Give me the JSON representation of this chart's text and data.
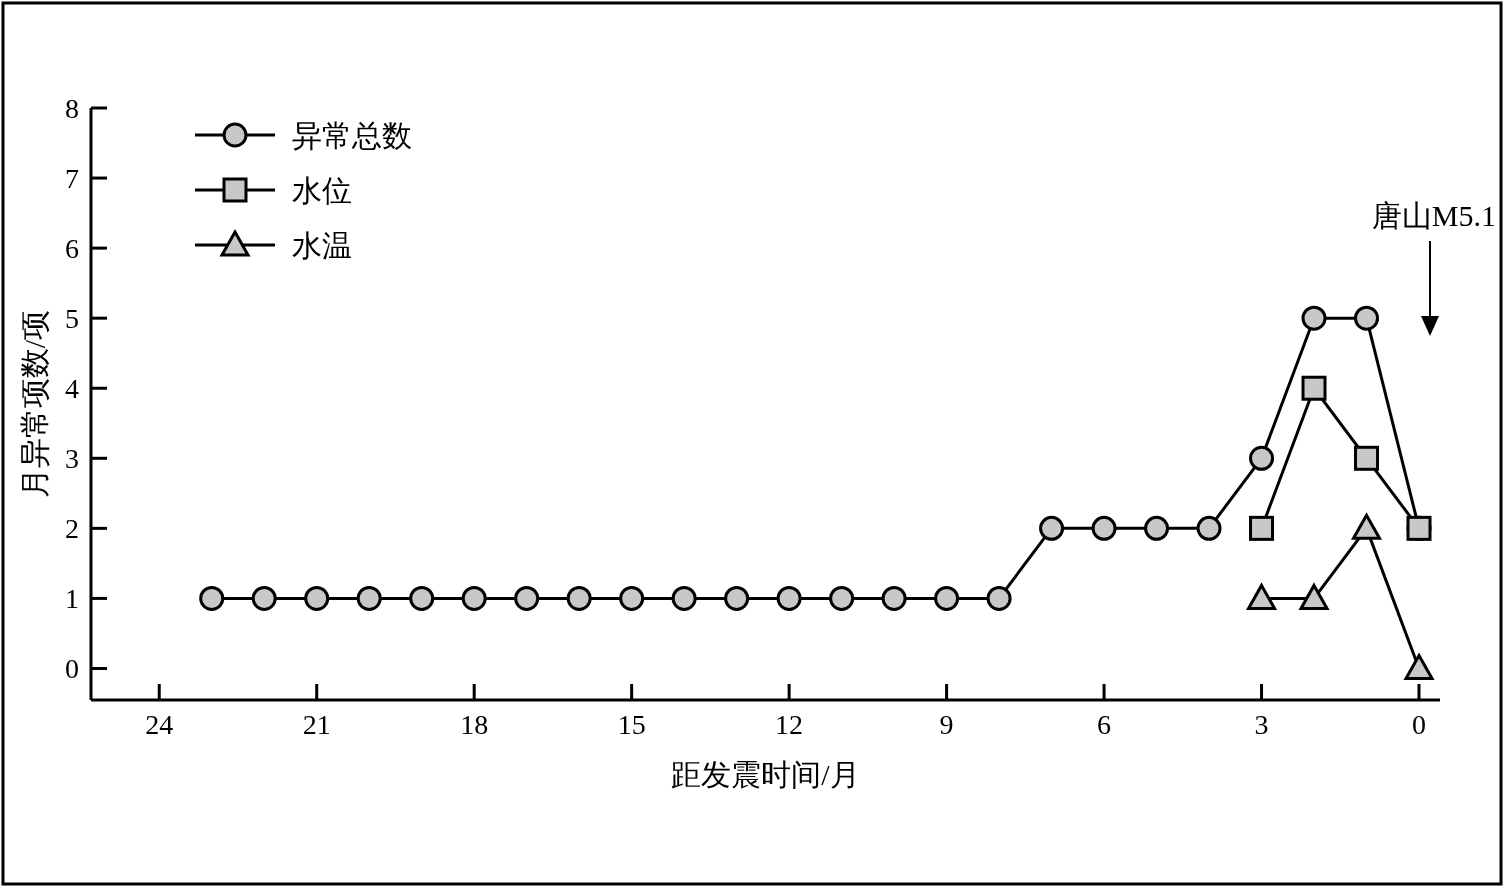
{
  "chart_data": {
    "type": "line",
    "xlabel": "距发震时间/月",
    "ylabel": "月异常项数/项",
    "xlim": [
      25.3,
      -0.4
    ],
    "xticks": [
      24,
      21,
      18,
      15,
      12,
      9,
      6,
      3,
      0
    ],
    "ylim": [
      -0.45,
      8
    ],
    "yticks": [
      0,
      1,
      2,
      3,
      4,
      5,
      6,
      7,
      8
    ],
    "legend": "top left",
    "grid": false,
    "line_style": "solid",
    "series": [
      {
        "name": "异常总数",
        "color": "#c8c8c8",
        "marker": "circle",
        "x": [
          23,
          22,
          21,
          20,
          19,
          18,
          17,
          16,
          15,
          14,
          13,
          12,
          11,
          10,
          9,
          8,
          7,
          6,
          5,
          4,
          3,
          2,
          1,
          0
        ],
        "values": [
          1,
          1,
          1,
          1,
          1,
          1,
          1,
          1,
          1,
          1,
          1,
          1,
          1,
          1,
          1,
          1,
          2,
          2,
          2,
          2,
          3,
          5,
          5,
          2
        ]
      },
      {
        "name": "水位",
        "color": "#c8c8c8",
        "marker": "square",
        "x": [
          3,
          2,
          1,
          0
        ],
        "values": [
          2,
          4,
          3,
          2
        ]
      },
      {
        "name": "水温",
        "color": "#c8c8c8",
        "marker": "triangle",
        "x": [
          3,
          2,
          1,
          0
        ],
        "values": [
          1,
          1,
          2,
          0
        ]
      }
    ],
    "annotations": [
      "唐山M5.1"
    ]
  }
}
